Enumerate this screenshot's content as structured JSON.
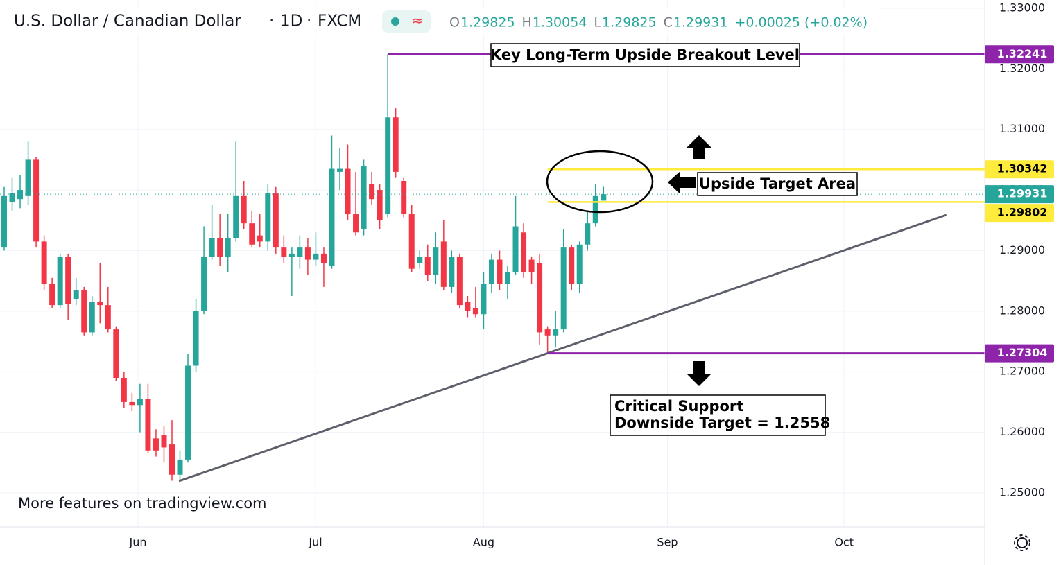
{
  "chart_data": {
    "type": "candlestick",
    "header": {
      "symbol": "U.S. Dollar / Canadian Dollar",
      "interval": "1D",
      "exchange": "FXCM",
      "ohlc": [
        {
          "key": "O",
          "value": "1.29825"
        },
        {
          "key": "H",
          "value": "1.30054"
        },
        {
          "key": "L",
          "value": "1.29825"
        },
        {
          "key": "C",
          "value": "1.29931"
        }
      ],
      "change": "+0.00025 (+0.02%)"
    },
    "x": [
      0,
      1,
      2,
      3,
      4,
      5,
      6,
      7,
      8,
      9,
      10,
      11,
      12,
      13,
      14,
      15,
      16,
      17,
      18,
      19,
      20,
      21,
      22,
      23,
      24,
      25,
      26,
      27,
      28,
      29,
      30,
      31,
      32,
      33,
      34,
      35,
      36,
      37,
      38,
      39,
      40,
      41,
      42,
      43,
      44,
      45,
      46,
      47,
      48,
      49,
      50,
      51,
      52,
      53,
      54,
      55,
      56,
      57,
      58,
      59,
      60,
      61,
      62,
      63,
      64,
      65,
      66,
      67,
      68,
      69,
      70,
      71,
      72,
      73,
      74,
      75
    ],
    "open": [
      1.2905,
      1.298,
      1.2985,
      1.299,
      1.305,
      1.2915,
      1.2845,
      1.281,
      1.289,
      1.282,
      1.2835,
      1.2765,
      1.2815,
      1.281,
      1.277,
      1.269,
      1.265,
      1.2645,
      1.2655,
      1.259,
      1.2595,
      1.258,
      1.253,
      1.2555,
      1.271,
      1.28,
      1.289,
      1.292,
      1.289,
      1.292,
      1.299,
      1.2945,
      1.2925,
      1.2915,
      1.2995,
      1.2905,
      1.289,
      1.289,
      1.2905,
      1.2885,
      1.2895,
      1.2875,
      1.303,
      1.3035,
      1.296,
      1.2935,
      1.301,
      1.3,
      1.296,
      1.312,
      1.3015,
      1.296,
      1.288,
      1.289,
      1.286,
      1.2915,
      1.284,
      1.289,
      1.2815,
      1.2805,
      1.2795,
      1.2845,
      1.2885,
      1.2845,
      1.2865,
      1.293,
      1.2885,
      1.288,
      1.277,
      1.276,
      1.277,
      1.2905,
      1.2845,
      1.291,
      1.2945,
      1.29825
    ],
    "high": [
      1.3005,
      1.302,
      1.3025,
      1.308,
      1.3055,
      1.2925,
      1.2855,
      1.2895,
      1.2895,
      1.2855,
      1.284,
      1.2825,
      1.288,
      1.284,
      1.2775,
      1.27,
      1.2665,
      1.268,
      1.268,
      1.2605,
      1.261,
      1.262,
      1.257,
      1.273,
      1.282,
      1.294,
      1.2975,
      1.296,
      1.296,
      1.308,
      1.3015,
      1.2965,
      1.296,
      1.301,
      1.3005,
      1.2925,
      1.2905,
      1.2925,
      1.292,
      1.293,
      1.2905,
      1.309,
      1.307,
      1.3075,
      1.303,
      1.305,
      1.303,
      1.301,
      1.32241,
      1.3135,
      1.302,
      1.2975,
      1.29,
      1.291,
      1.293,
      1.295,
      1.29,
      1.2895,
      1.2825,
      1.284,
      1.2865,
      1.2895,
      1.29,
      1.2875,
      1.299,
      1.2945,
      1.289,
      1.2895,
      1.2775,
      1.28,
      1.2935,
      1.291,
      1.2915,
      1.2965,
      1.301,
      1.30054
    ],
    "low": [
      1.29,
      1.2965,
      1.297,
      1.2975,
      1.2905,
      1.2835,
      1.2805,
      1.2805,
      1.2785,
      1.281,
      1.276,
      1.276,
      1.278,
      1.2765,
      1.2685,
      1.264,
      1.2635,
      1.26,
      1.2565,
      1.256,
      1.255,
      1.252,
      1.252,
      1.255,
      1.27,
      1.2795,
      1.2885,
      1.2875,
      1.2865,
      1.2915,
      1.2935,
      1.2905,
      1.2905,
      1.29,
      1.2895,
      1.288,
      1.2825,
      1.287,
      1.286,
      1.2875,
      1.284,
      1.287,
      1.3,
      1.295,
      1.2925,
      1.2925,
      1.2975,
      1.2935,
      1.2955,
      1.302,
      1.2955,
      1.2865,
      1.287,
      1.285,
      1.2845,
      1.2835,
      1.283,
      1.2805,
      1.279,
      1.279,
      1.277,
      1.283,
      1.2835,
      1.282,
      1.286,
      1.2855,
      1.2845,
      1.2745,
      1.273,
      1.274,
      1.2765,
      1.2835,
      1.283,
      1.29,
      1.294,
      1.29825
    ],
    "close": [
      1.299,
      1.2995,
      1.3,
      1.305,
      1.2915,
      1.2845,
      1.281,
      1.289,
      1.2812,
      1.2835,
      1.2765,
      1.2815,
      1.281,
      1.277,
      1.269,
      1.265,
      1.2645,
      1.2655,
      1.257,
      1.257,
      1.2575,
      1.253,
      1.2555,
      1.271,
      1.28,
      1.289,
      1.292,
      1.289,
      1.292,
      1.299,
      1.2945,
      1.291,
      1.2915,
      1.2995,
      1.2905,
      1.289,
      1.2895,
      1.2905,
      1.2885,
      1.2895,
      1.288,
      1.3035,
      1.3035,
      1.296,
      1.293,
      1.304,
      1.2985,
      1.295,
      1.312,
      1.303,
      1.296,
      1.287,
      1.289,
      1.286,
      1.2905,
      1.284,
      1.289,
      1.281,
      1.28,
      1.2795,
      1.2845,
      1.2885,
      1.2845,
      1.2865,
      1.294,
      1.2865,
      1.2865,
      1.2765,
      1.276,
      1.277,
      1.2905,
      1.2845,
      1.291,
      1.2945,
      1.299,
      1.29931
    ],
    "up_color": "#26a69a",
    "down_color": "#f23645",
    "xlim": [
      -0.52,
      122.7
    ],
    "xticks": [
      {
        "value": 16.75,
        "label": "Jun"
      },
      {
        "value": 38.97,
        "label": "Jul"
      },
      {
        "value": 60.0,
        "label": "Aug"
      },
      {
        "value": 83.0,
        "label": "Sep"
      },
      {
        "value": 105.1,
        "label": "Oct"
      }
    ],
    "ylim": [
      1.24439,
      1.33137
    ],
    "yticks": [
      {
        "value": 1.25,
        "label": "1.25000"
      },
      {
        "value": 1.26,
        "label": "1.26000"
      },
      {
        "value": 1.27,
        "label": "1.27000"
      },
      {
        "value": 1.28,
        "label": "1.28000"
      },
      {
        "value": 1.29,
        "label": "1.29000"
      },
      {
        "value": 1.3,
        "label": "1.30000"
      },
      {
        "value": 1.31,
        "label": "1.31000"
      },
      {
        "value": 1.32,
        "label": "1.32000"
      },
      {
        "value": 1.33,
        "label": "1.33000"
      }
    ],
    "grid": true,
    "last_price": 1.29931,
    "levels": [
      {
        "value": 1.32241,
        "color": "#8e24aa",
        "from": 48
      },
      {
        "value": 1.30342,
        "color": "#ffeb3b",
        "from": 68
      },
      {
        "value": 1.29802,
        "color": "#ffeb3b",
        "from": 68
      },
      {
        "value": 1.27304,
        "color": "#8e24aa",
        "from": 68
      }
    ],
    "trendline": {
      "x": [
        21.87,
        117.9
      ],
      "y": [
        1.25195,
        1.29589
      ],
      "color": "#5d606b"
    },
    "annotations": [
      "Key Long-Term Upside Breakout Level",
      "Upside Target Area",
      "Critical Support",
      "Downside Target = 1.2558"
    ],
    "watermark": "More features on tradingview.com"
  }
}
